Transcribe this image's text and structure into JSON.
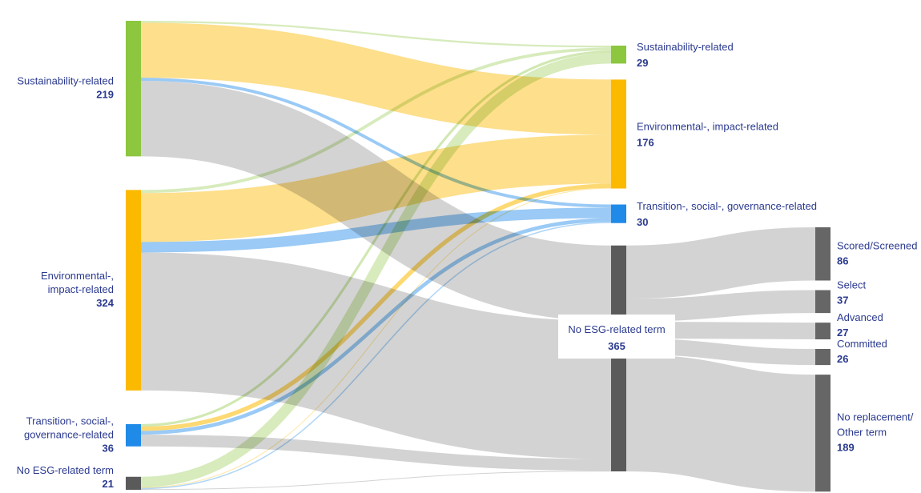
{
  "chart_data": {
    "type": "sankey",
    "colors": {
      "sust": "#8dc63f",
      "env": "#fbb900",
      "tsg": "#1f8ae8",
      "none": "#5a5a5a",
      "outcome": "#666666",
      "flow_none": "#c4c4c4",
      "label": "#2b3a8f"
    },
    "nodes": [
      {
        "id": "src_sust",
        "stage": 0,
        "name": "Sustainability-related",
        "value": 219,
        "category": "sust"
      },
      {
        "id": "src_env",
        "stage": 0,
        "name": "Environmental-, impact-related",
        "value": 324,
        "category": "env"
      },
      {
        "id": "src_tsg",
        "stage": 0,
        "name": "Transition-, social-, governance-related",
        "value": 36,
        "category": "tsg"
      },
      {
        "id": "src_none",
        "stage": 0,
        "name": "No ESG-related term",
        "value": 21,
        "category": "none"
      },
      {
        "id": "dst_sust",
        "stage": 1,
        "name": "Sustainability-related",
        "value": 29,
        "category": "sust"
      },
      {
        "id": "dst_env",
        "stage": 1,
        "name": "Environmental-, impact-related",
        "value": 176,
        "category": "env"
      },
      {
        "id": "dst_tsg",
        "stage": 1,
        "name": "Transition-, social-, governance-related",
        "value": 30,
        "category": "tsg"
      },
      {
        "id": "dst_none",
        "stage": 1,
        "name": "No ESG-related term",
        "value": 365,
        "category": "none"
      },
      {
        "id": "out_scored",
        "stage": 2,
        "name": "Scored/Screened",
        "value": 86,
        "category": "outcome"
      },
      {
        "id": "out_select",
        "stage": 2,
        "name": "Select",
        "value": 37,
        "category": "outcome"
      },
      {
        "id": "out_advanced",
        "stage": 2,
        "name": "Advanced",
        "value": 27,
        "category": "outcome"
      },
      {
        "id": "out_committed",
        "stage": 2,
        "name": "Committed",
        "value": 26,
        "category": "outcome"
      },
      {
        "id": "out_norepl",
        "stage": 2,
        "name": "No replacement/ Other term",
        "value": 189,
        "category": "outcome"
      }
    ],
    "links": [
      {
        "source": "src_sust",
        "target": "dst_sust",
        "value": 3
      },
      {
        "source": "src_sust",
        "target": "dst_env",
        "value": 89
      },
      {
        "source": "src_sust",
        "target": "dst_tsg",
        "value": 5
      },
      {
        "source": "src_sust",
        "target": "dst_none",
        "value": 122
      },
      {
        "source": "src_env",
        "target": "dst_sust",
        "value": 5
      },
      {
        "source": "src_env",
        "target": "dst_env",
        "value": 79
      },
      {
        "source": "src_env",
        "target": "dst_tsg",
        "value": 17
      },
      {
        "source": "src_env",
        "target": "dst_none",
        "value": 223
      },
      {
        "source": "src_tsg",
        "target": "dst_sust",
        "value": 4
      },
      {
        "source": "src_tsg",
        "target": "dst_env",
        "value": 7
      },
      {
        "source": "src_tsg",
        "target": "dst_tsg",
        "value": 6
      },
      {
        "source": "src_tsg",
        "target": "dst_none",
        "value": 19
      },
      {
        "source": "src_none",
        "target": "dst_sust",
        "value": 17
      },
      {
        "source": "src_none",
        "target": "dst_env",
        "value": 1
      },
      {
        "source": "src_none",
        "target": "dst_tsg",
        "value": 2
      },
      {
        "source": "src_none",
        "target": "dst_none",
        "value": 1
      },
      {
        "source": "dst_none",
        "target": "out_scored",
        "value": 86
      },
      {
        "source": "dst_none",
        "target": "out_select",
        "value": 37
      },
      {
        "source": "dst_none",
        "target": "out_advanced",
        "value": 27
      },
      {
        "source": "dst_none",
        "target": "out_committed",
        "value": 26
      },
      {
        "source": "dst_none",
        "target": "out_norepl",
        "value": 189
      }
    ]
  }
}
